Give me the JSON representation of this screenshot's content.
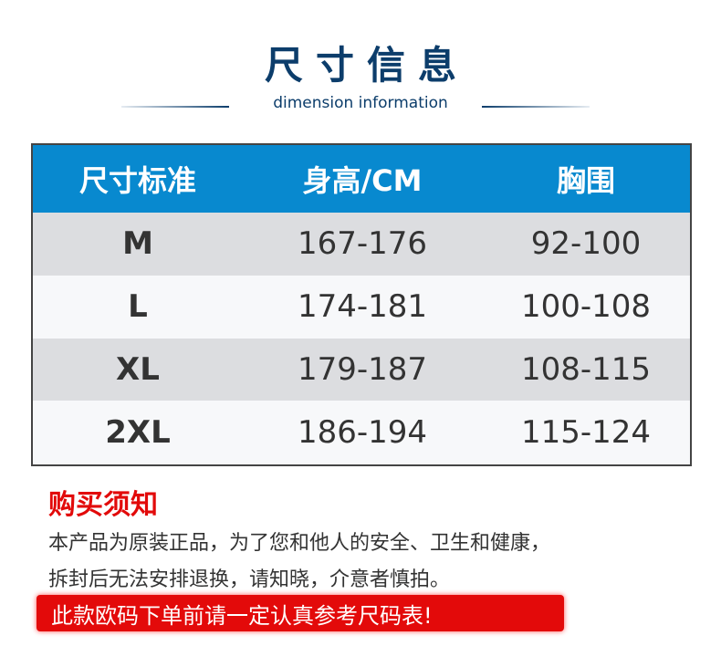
{
  "header": {
    "title": "尺寸信息",
    "subtitle": "dimension information"
  },
  "table": {
    "columns": [
      "尺寸标准",
      "身高/CM",
      "胸围"
    ],
    "rows": [
      [
        "M",
        "167-176",
        "92-100"
      ],
      [
        "L",
        "174-181",
        "100-108"
      ],
      [
        "XL",
        "179-187",
        "108-115"
      ],
      [
        "2XL",
        "186-194",
        "115-124"
      ]
    ]
  },
  "notice": {
    "title": "购买须知",
    "lines": [
      "本产品为原装正品，为了您和他人的安全、卫生和健康，",
      "拆封后无法安排退换，请知晓，介意者慎拍。"
    ],
    "banner": "此款欧码下单前请一定认真参考尺码表!"
  },
  "colors": {
    "header_blue": "#0889cf",
    "title_navy": "#0c3d6b",
    "accent_red": "#e20a0a"
  }
}
